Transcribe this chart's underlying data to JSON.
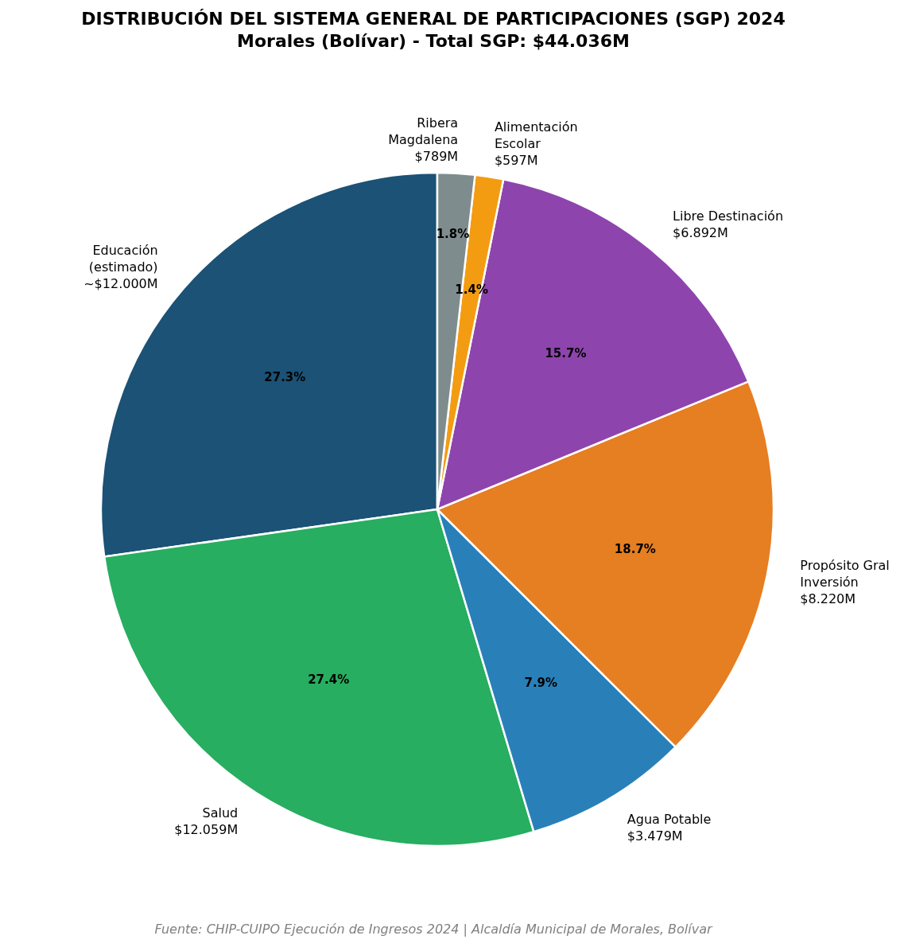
{
  "chart_data": {
    "type": "pie",
    "title": "DISTRIBUCIÓN DEL SISTEMA GENERAL DE PARTICIPACIONES (SGP) 2024",
    "subtitle": "Morales (Bolívar) - Total SGP: $44.036M",
    "categories": [
      "Educación\n(estimado)\n~$12.000M",
      "Salud\n$12.059M",
      "Agua Potable\n$3.479M",
      "Propósito Gral\nInversión\n$8.220M",
      "Libre Destinación\n$6.892M",
      "Alimentación\nEscolar\n$597M",
      "Ribera\nMagdalena\n$789M"
    ],
    "values": [
      27.25,
      27.38,
      7.9,
      18.67,
      15.65,
      1.36,
      1.79
    ],
    "colors": [
      "#1b5276",
      "#27ae60",
      "#2980b9",
      "#e67e22",
      "#8e44ad",
      "#f39c12",
      "#7f8c8d"
    ],
    "value_labels": [
      "27.3%",
      "27.4%",
      "7.9%",
      "18.7%",
      "15.7%",
      "1.4%",
      "1.8%"
    ],
    "annotations": [
      "Fuente: CHIP-CUIPO Ejecución de Ingresos 2024 | Alcaldía Municipal de Morales, Bolívar"
    ]
  }
}
